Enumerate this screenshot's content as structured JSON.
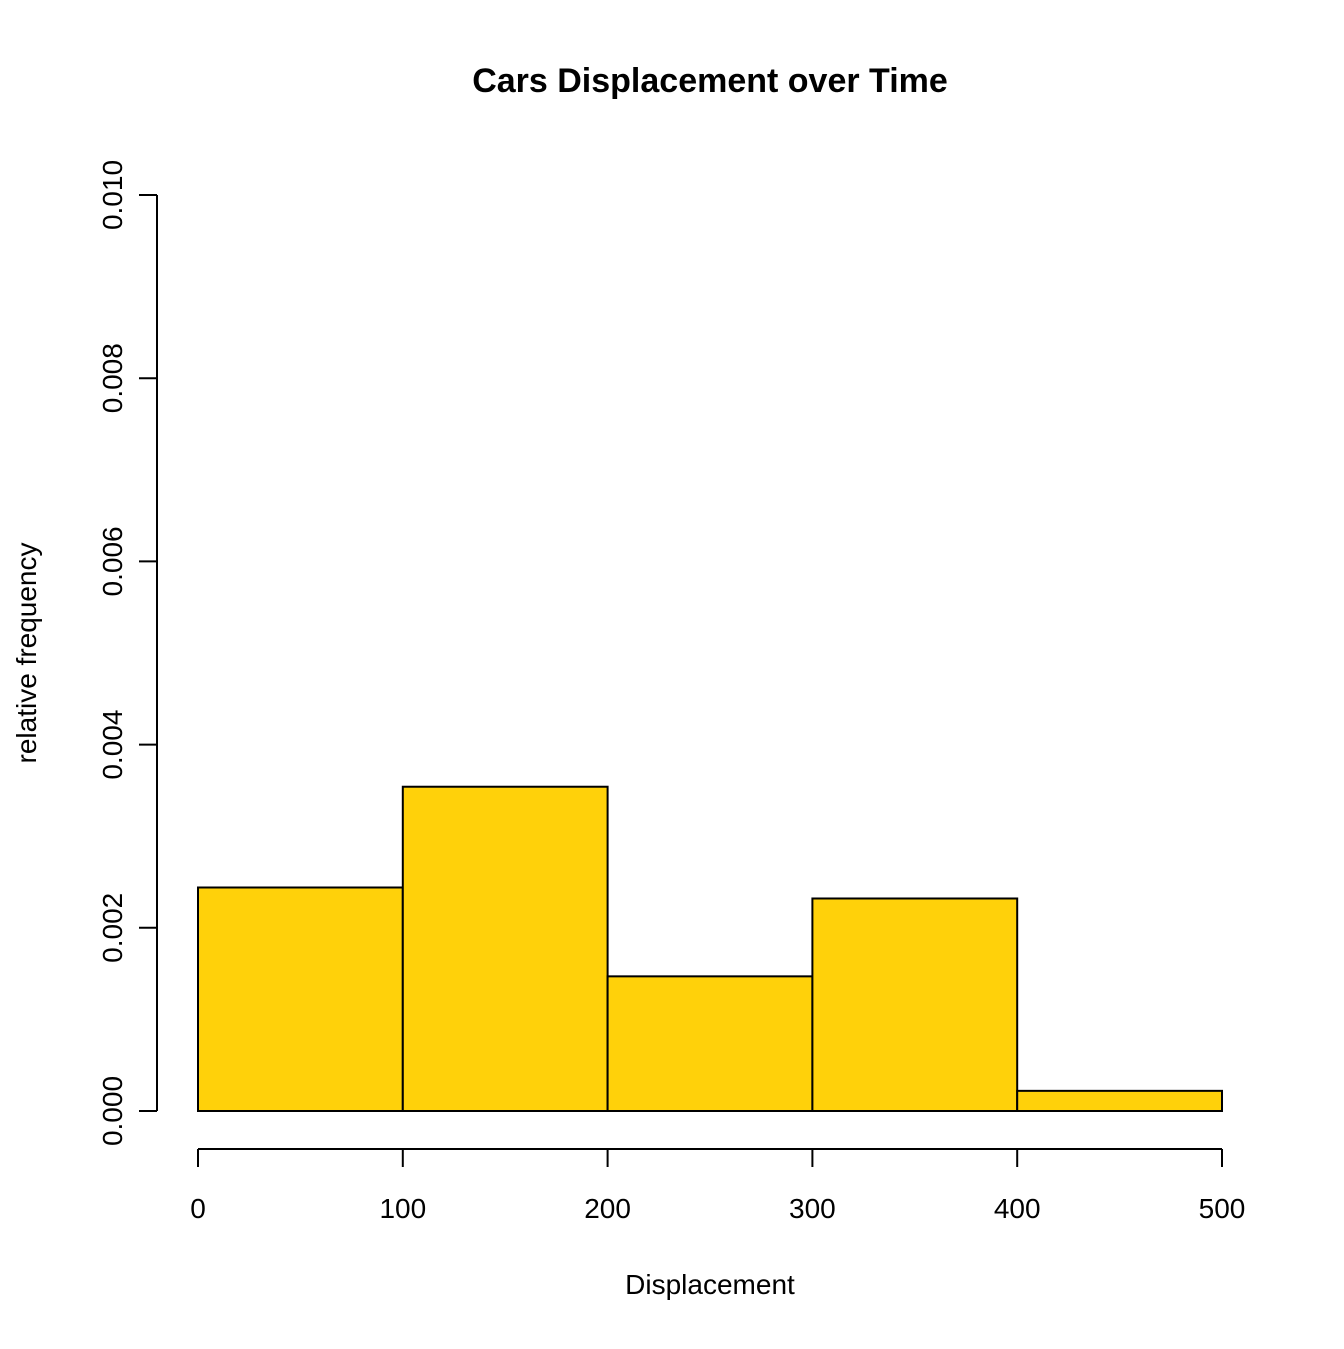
{
  "chart_data": {
    "type": "histogram",
    "title": "Cars Displacement over Time",
    "xlabel": "Displacement",
    "ylabel": "relative frequency",
    "bin_edges": [
      0,
      100,
      200,
      300,
      400,
      500
    ],
    "values": [
      0.00244,
      0.00354,
      0.00147,
      0.00232,
      0.00022
    ],
    "xlim": [
      0,
      500
    ],
    "ylim": [
      0,
      0.01
    ],
    "x_ticks": [
      0,
      100,
      200,
      300,
      400,
      500
    ],
    "x_tick_labels": [
      "0",
      "100",
      "200",
      "300",
      "400",
      "500"
    ],
    "y_ticks": [
      0,
      0.002,
      0.004,
      0.006,
      0.008,
      0.01
    ],
    "y_tick_labels": [
      "0.000",
      "0.002",
      "0.004",
      "0.006",
      "0.008",
      "0.010"
    ],
    "bar_color": "#FFD10A",
    "grid": false,
    "legend": "none"
  }
}
